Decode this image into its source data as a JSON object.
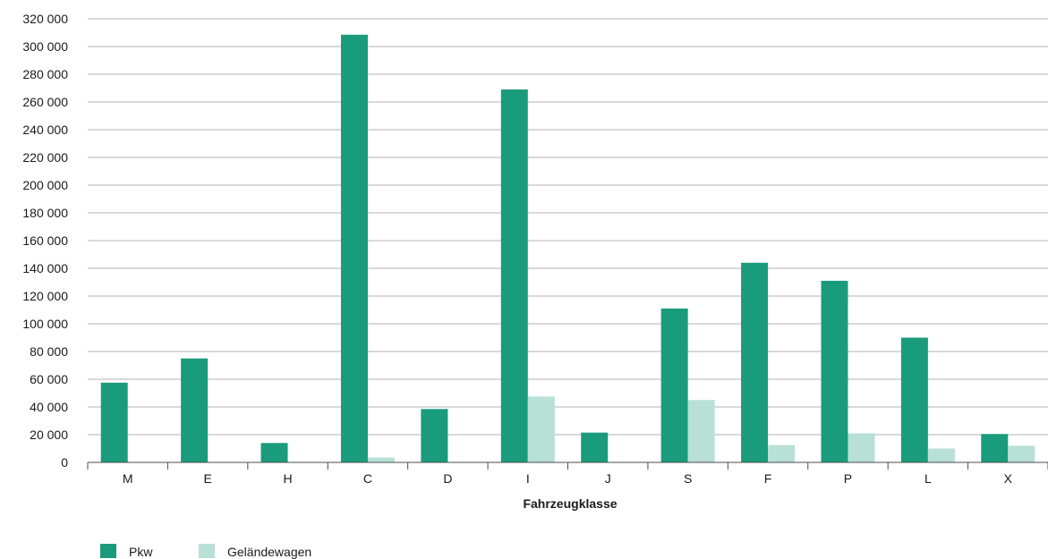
{
  "chart_data": {
    "type": "bar",
    "title": "",
    "xlabel": "Fahrzeugklasse",
    "ylabel": "",
    "categories": [
      "M",
      "E",
      "H",
      "C",
      "D",
      "I",
      "J",
      "S",
      "F",
      "P",
      "L",
      "X"
    ],
    "series": [
      {
        "name": "Pkw",
        "color": "#1a9b7c",
        "values": [
          57500,
          75000,
          14000,
          308500,
          38500,
          269000,
          21500,
          111000,
          144000,
          131000,
          90000,
          20500
        ]
      },
      {
        "name": "Geländewagen",
        "color": "#b8e0d7",
        "values": [
          0,
          0,
          0,
          3500,
          0,
          47500,
          0,
          45000,
          12500,
          21000,
          10000,
          12000
        ]
      }
    ],
    "ylim": [
      0,
      320000
    ],
    "yticks": [
      0,
      20000,
      40000,
      60000,
      80000,
      100000,
      120000,
      140000,
      160000,
      180000,
      200000,
      220000,
      240000,
      260000,
      280000,
      300000,
      320000
    ],
    "ytick_labels": [
      "0",
      "20 000",
      "40 000",
      "60 000",
      "80 000",
      "100 000",
      "120 000",
      "140 000",
      "160 000",
      "180 000",
      "200 000",
      "220 000",
      "240 000",
      "260 000",
      "280 000",
      "300 000",
      "320 000"
    ],
    "grid": true,
    "legend_position": "bottom-left"
  }
}
